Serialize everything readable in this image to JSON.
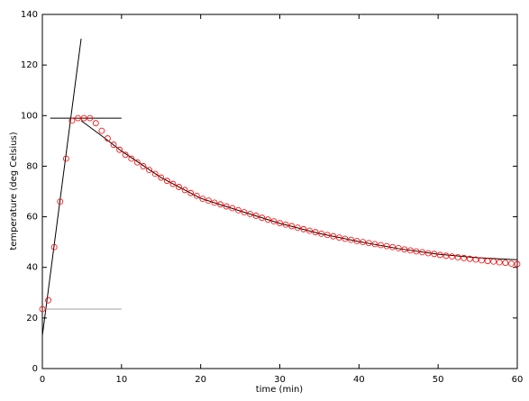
{
  "chart_data": {
    "type": "scatter",
    "x_label": "time (min)",
    "y_label": "temperature (deg Celsius)",
    "xlim": [
      0,
      60
    ],
    "xticks": [
      0,
      10,
      20,
      30,
      40,
      50,
      60
    ],
    "ylim": [
      0,
      140
    ],
    "yticks": [
      0,
      20,
      40,
      60,
      80,
      100,
      120,
      140
    ],
    "series": [
      {
        "color": "#ff0000",
        "x": [
          0,
          0.75,
          1.5,
          2.25,
          3,
          3.75,
          4.5,
          5.25,
          6,
          6.75,
          7.5,
          8.25,
          9,
          9.75,
          10.5,
          11.25,
          12,
          12.75,
          13.5,
          14.25,
          15,
          15.75,
          16.5,
          17.25,
          18,
          18.75,
          19.5,
          20.25,
          21,
          21.75,
          22.5,
          23.25,
          24,
          24.75,
          25.5,
          26.25,
          27,
          27.75,
          28.5,
          29.25,
          30,
          30.75,
          31.5,
          32.25,
          33,
          33.75,
          34.5,
          35.25,
          36,
          36.75,
          37.5,
          38.25,
          39,
          39.75,
          40.5,
          41.25,
          42,
          42.75,
          43.5,
          44.25,
          45,
          45.75,
          46.5,
          47.25,
          48,
          48.75,
          49.5,
          50.25,
          51,
          51.75,
          52.5,
          53.25,
          54,
          54.75,
          55.5,
          56.25,
          57,
          57.75,
          58.5,
          59.25,
          60
        ],
        "values": [
          23.5,
          27,
          48,
          66,
          83,
          98,
          99,
          99,
          99,
          97,
          94,
          91,
          88.5,
          86.5,
          84.5,
          83,
          81.5,
          80,
          78.5,
          77,
          75.5,
          74.2,
          73,
          71.8,
          70.6,
          69.4,
          68.3,
          67.1,
          66.4,
          65.6,
          64.9,
          64.1,
          63.4,
          62.6,
          61.8,
          61.1,
          60.4,
          59.6,
          58.9,
          58.2,
          57.5,
          56.9,
          56.3,
          55.7,
          55.1,
          54.5,
          53.9,
          53.3,
          52.8,
          52.3,
          51.8,
          51.3,
          50.9,
          50.4,
          50,
          49.6,
          49.2,
          48.8,
          48.4,
          48,
          47.6,
          47.1,
          46.7,
          46.3,
          46,
          45.6,
          45.3,
          44.9,
          44.6,
          44.3,
          44,
          43.7,
          43.4,
          43.1,
          42.8,
          42.5,
          42.3,
          42,
          41.8,
          41.5,
          41.3
        ]
      }
    ],
    "lines": [
      {
        "color": "#000000",
        "x": [
          0,
          4.9
        ],
        "values": [
          13,
          130.4
        ]
      },
      {
        "color": "#000000",
        "x": [
          1,
          10
        ],
        "values": [
          99,
          99
        ]
      },
      {
        "color": "#a0a0a0",
        "x": [
          0.3,
          10
        ],
        "values": [
          23.5,
          23.5
        ]
      },
      {
        "color": "#000000",
        "x": [
          4.9,
          7.5,
          10,
          15,
          20,
          25,
          30,
          35,
          40,
          45,
          50,
          55,
          60
        ],
        "values": [
          98,
          92,
          86,
          75.5,
          67.3,
          62.3,
          57.4,
          53.4,
          50.2,
          47.4,
          45.2,
          43.8,
          43
        ]
      }
    ]
  }
}
